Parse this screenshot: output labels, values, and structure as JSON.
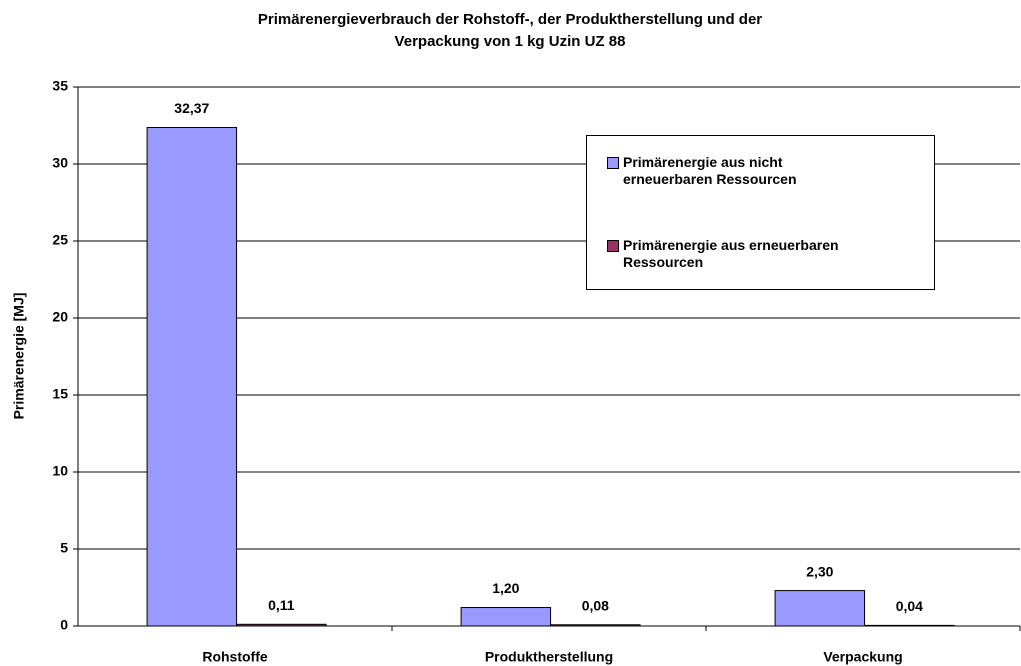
{
  "chart_data": {
    "type": "bar",
    "title": [
      "Primärenergieverbrauch der Rohstoff-, der Produktherstellung und der",
      "Verpackung von 1 kg Uzin UZ 88"
    ],
    "ylabel": "Primärenergie [MJ]",
    "categories": [
      "Rohstoffe",
      "Produktherstellung",
      "Verpackung"
    ],
    "series": [
      {
        "name": "Primärenergie aus nicht erneuerbaren Ressourcen",
        "color": "#9999ff",
        "values": [
          32.37,
          1.2,
          2.3
        ],
        "value_labels": [
          "32,37",
          "1,20",
          "2,30"
        ]
      },
      {
        "name": "Primärenergie aus erneuerbaren Ressourcen",
        "color": "#993366",
        "values": [
          0.11,
          0.08,
          0.04
        ],
        "value_labels": [
          "0,11",
          "0,08",
          "0,04"
        ]
      }
    ],
    "ylim": [
      0,
      35
    ],
    "yticks": [
      0,
      5,
      10,
      15,
      20,
      25,
      30,
      35
    ],
    "grid": true,
    "legend": "upper right"
  }
}
